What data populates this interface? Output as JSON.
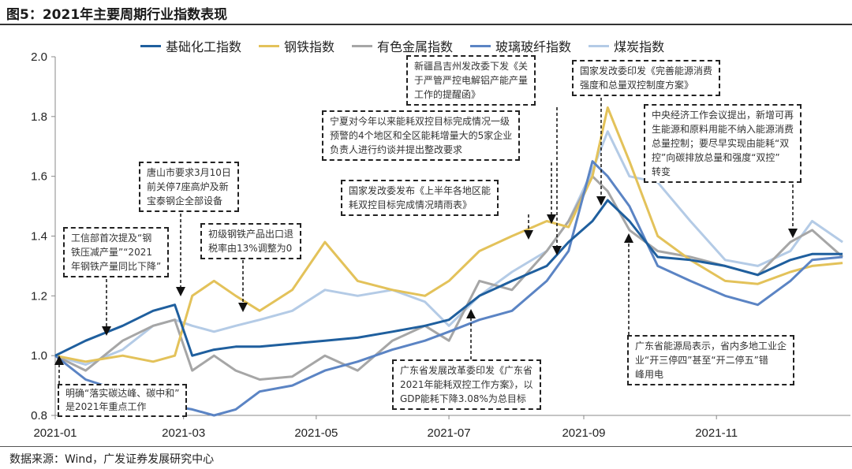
{
  "header": {
    "title": "图5：2021年主要周期行业指数表现"
  },
  "footer": {
    "source": "数据来源：Wind，广发证券发展研究中心"
  },
  "chart_data": {
    "type": "line",
    "title": "图5：2021年主要周期行业指数表现",
    "xlabel": "",
    "ylabel": "",
    "ylim": [
      0.8,
      2.0
    ],
    "yticks": [
      "0.8",
      "1.0",
      "1.2",
      "1.4",
      "1.6",
      "1.8",
      "2.0"
    ],
    "xticks": [
      "2021-01",
      "2021-03",
      "2021-05",
      "2021-07",
      "2021-09",
      "2021-11"
    ],
    "grid": false,
    "legend": "top",
    "x": [
      "2021-01-01",
      "2021-01-15",
      "2021-02-01",
      "2021-02-15",
      "2021-02-25",
      "2021-03-05",
      "2021-03-15",
      "2021-03-25",
      "2021-04-05",
      "2021-04-20",
      "2021-05-05",
      "2021-05-20",
      "2021-06-05",
      "2021-06-20",
      "2021-07-01",
      "2021-07-15",
      "2021-07-30",
      "2021-08-15",
      "2021-08-25",
      "2021-09-05",
      "2021-09-12",
      "2021-09-22",
      "2021-10-05",
      "2021-10-20",
      "2021-11-05",
      "2021-11-20",
      "2021-12-05",
      "2021-12-15",
      "2021-12-29"
    ],
    "series": [
      {
        "name": "基础化工指数",
        "color": "#1f5f9e",
        "values": [
          1.0,
          1.05,
          1.1,
          1.15,
          1.17,
          1.0,
          1.02,
          1.03,
          1.03,
          1.04,
          1.05,
          1.06,
          1.08,
          1.1,
          1.12,
          1.2,
          1.25,
          1.3,
          1.38,
          1.45,
          1.52,
          1.45,
          1.33,
          1.32,
          1.3,
          1.27,
          1.32,
          1.34,
          1.34
        ]
      },
      {
        "name": "钢铁指数",
        "color": "#e3c25a",
        "values": [
          1.0,
          0.98,
          1.0,
          0.98,
          1.0,
          1.2,
          1.25,
          1.2,
          1.15,
          1.22,
          1.38,
          1.25,
          1.22,
          1.2,
          1.25,
          1.35,
          1.4,
          1.45,
          1.43,
          1.6,
          1.83,
          1.65,
          1.4,
          1.32,
          1.25,
          1.24,
          1.28,
          1.3,
          1.31
        ]
      },
      {
        "name": "有色金属指数",
        "color": "#a6a6a6",
        "values": [
          1.0,
          0.95,
          1.05,
          1.1,
          1.12,
          0.95,
          1.0,
          0.95,
          0.92,
          0.93,
          1.0,
          0.95,
          1.05,
          1.1,
          1.05,
          1.25,
          1.22,
          1.35,
          1.45,
          1.6,
          1.55,
          1.42,
          1.35,
          1.33,
          1.3,
          1.27,
          1.38,
          1.42,
          1.33
        ]
      },
      {
        "name": "玻璃玻纤指数",
        "color": "#5b84c4",
        "values": [
          1.0,
          0.92,
          0.88,
          0.85,
          0.83,
          0.82,
          0.8,
          0.82,
          0.88,
          0.9,
          0.95,
          0.98,
          1.02,
          1.05,
          1.08,
          1.12,
          1.15,
          1.25,
          1.35,
          1.65,
          1.6,
          1.5,
          1.3,
          1.25,
          1.2,
          1.17,
          1.25,
          1.32,
          1.33
        ]
      },
      {
        "name": "煤炭指数",
        "color": "#b4cbe6",
        "values": [
          1.0,
          0.97,
          1.02,
          1.1,
          1.12,
          1.1,
          1.08,
          1.1,
          1.12,
          1.15,
          1.22,
          1.2,
          1.22,
          1.18,
          1.1,
          1.2,
          1.28,
          1.35,
          1.45,
          1.62,
          1.75,
          1.6,
          1.58,
          1.45,
          1.32,
          1.3,
          1.35,
          1.45,
          1.38
        ]
      }
    ]
  },
  "annotations": [
    {
      "text": "工信部首次提及“钢\n铁压减产量”“2021\n年钢铁产量同比下降”"
    },
    {
      "text": "唐山市要求3月10日\n前关停7座高炉及新\n宝泰钢企全部设备"
    },
    {
      "text": "初级钢铁产品出口退\n税率由13%调整为0"
    },
    {
      "text": "宁夏对今年以来能耗双控目标完成情况一级\n预警的4个地区和全区能耗增量大的5家企业\n负责人进行约谈并提出整改要求"
    },
    {
      "text": "新疆昌吉州发改委下发《关\n于严管严控电解铝产能产量\n工作的提醒函》"
    },
    {
      "text": "国家发改委发布《上半年各地区能\n耗双控目标完成情况晴雨表》"
    },
    {
      "text": "国家发改委印发《完善能源消费\n强度和总量双控制度方案》"
    },
    {
      "text": "中央经济工作会议提出，新增可再\n生能源和原料用能不纳入能源消费\n总量控制；要尽早实现由能耗“双\n控”向碳排放总量和强度“双控”\n转变"
    },
    {
      "text": "明确“落实碳达峰、碳中和”\n是2021年重点工作"
    },
    {
      "text": "广东省发展改革委印发《广东省\n2021年能耗双控工作方案》，以\nGDP能耗下降3.08%为总目标"
    },
    {
      "text": "广东省能源局表示，省内多地工业企\n业“开三停四”甚至“开二停五”错\n峰用电"
    }
  ]
}
